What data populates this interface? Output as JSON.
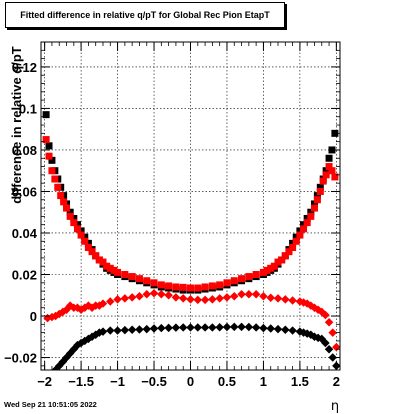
{
  "chart_data": {
    "type": "scatter",
    "title": "Fitted difference in relative q/pT for Global Rec Pion EtapT",
    "xlabel": "η",
    "ylabel": "difference in relative q/pT",
    "xlim": [
      -2.05,
      2.05
    ],
    "ylim": [
      -0.026,
      0.132
    ],
    "x_ticks": [
      -2,
      -1.5,
      -1,
      -0.5,
      0,
      0.5,
      1,
      1.5,
      2
    ],
    "x_tick_labels": [
      "−2",
      "−1.5",
      "−1",
      "−0.5",
      "0",
      "0.5",
      "1",
      "1.5",
      "2"
    ],
    "y_ticks": [
      -0.02,
      0,
      0.02,
      0.04,
      0.06,
      0.08,
      0.1,
      0.12
    ],
    "y_tick_labels": [
      "−0.02",
      "0",
      "0.02",
      "0.04",
      "0.06",
      "0.08",
      "0.1",
      "0.12"
    ],
    "grid": true,
    "series": [
      {
        "color": "#000000",
        "marker": "square",
        "x": [
          -1.98,
          -1.94,
          -1.9,
          -1.86,
          -1.82,
          -1.78,
          -1.74,
          -1.7,
          -1.65,
          -1.6,
          -1.55,
          -1.5,
          -1.45,
          -1.4,
          -1.35,
          -1.3,
          -1.25,
          -1.2,
          -1.15,
          -1.1,
          -1.05,
          -1.0,
          -0.9,
          -0.8,
          -0.7,
          -0.6,
          -0.5,
          -0.4,
          -0.3,
          -0.2,
          -0.1,
          0.0,
          0.1,
          0.2,
          0.3,
          0.4,
          0.5,
          0.6,
          0.7,
          0.8,
          0.9,
          1.0,
          1.05,
          1.1,
          1.15,
          1.2,
          1.25,
          1.3,
          1.35,
          1.4,
          1.45,
          1.5,
          1.55,
          1.6,
          1.65,
          1.7,
          1.74,
          1.78,
          1.82,
          1.86,
          1.9,
          1.94,
          1.98
        ],
        "y": [
          0.097,
          0.082,
          0.075,
          0.07,
          0.066,
          0.062,
          0.058,
          0.054,
          0.05,
          0.047,
          0.044,
          0.041,
          0.038,
          0.035,
          0.032,
          0.029,
          0.027,
          0.025,
          0.023,
          0.022,
          0.021,
          0.02,
          0.019,
          0.018,
          0.017,
          0.016,
          0.015,
          0.014,
          0.0135,
          0.013,
          0.0125,
          0.0125,
          0.0125,
          0.013,
          0.0135,
          0.014,
          0.015,
          0.016,
          0.017,
          0.018,
          0.019,
          0.02,
          0.021,
          0.022,
          0.023,
          0.025,
          0.027,
          0.029,
          0.032,
          0.035,
          0.038,
          0.041,
          0.044,
          0.047,
          0.05,
          0.054,
          0.058,
          0.062,
          0.066,
          0.07,
          0.076,
          0.08,
          0.088
        ]
      },
      {
        "color": "#000000",
        "marker": "diamond",
        "x": [
          -1.9,
          -1.85,
          -1.8,
          -1.75,
          -1.7,
          -1.65,
          -1.6,
          -1.55,
          -1.5,
          -1.45,
          -1.4,
          -1.35,
          -1.3,
          -1.25,
          -1.2,
          -1.1,
          -1.0,
          -0.9,
          -0.8,
          -0.7,
          -0.6,
          -0.5,
          -0.4,
          -0.3,
          -0.2,
          -0.1,
          0.0,
          0.1,
          0.2,
          0.3,
          0.4,
          0.5,
          0.6,
          0.7,
          0.8,
          0.9,
          1.0,
          1.1,
          1.2,
          1.3,
          1.4,
          1.5,
          1.55,
          1.6,
          1.65,
          1.7,
          1.75,
          1.8,
          1.85,
          1.9,
          1.95,
          2.0
        ],
        "y": [
          -0.028,
          -0.026,
          -0.024,
          -0.022,
          -0.02,
          -0.018,
          -0.016,
          -0.014,
          -0.013,
          -0.012,
          -0.011,
          -0.01,
          -0.009,
          -0.008,
          -0.0075,
          -0.007,
          -0.007,
          -0.0068,
          -0.0066,
          -0.0065,
          -0.0063,
          -0.006,
          -0.0058,
          -0.0057,
          -0.0056,
          -0.0055,
          -0.0055,
          -0.0055,
          -0.0055,
          -0.0055,
          -0.0054,
          -0.0053,
          -0.0052,
          -0.0052,
          -0.0053,
          -0.0055,
          -0.0058,
          -0.006,
          -0.0063,
          -0.0066,
          -0.007,
          -0.0075,
          -0.008,
          -0.0085,
          -0.009,
          -0.01,
          -0.0105,
          -0.011,
          -0.013,
          -0.016,
          -0.02,
          -0.024
        ]
      },
      {
        "color": "#ff0000",
        "marker": "square",
        "x": [
          -1.98,
          -1.94,
          -1.9,
          -1.86,
          -1.82,
          -1.78,
          -1.74,
          -1.7,
          -1.65,
          -1.6,
          -1.55,
          -1.5,
          -1.45,
          -1.4,
          -1.35,
          -1.3,
          -1.25,
          -1.2,
          -1.15,
          -1.1,
          -1.05,
          -1.0,
          -0.9,
          -0.8,
          -0.7,
          -0.6,
          -0.5,
          -0.4,
          -0.3,
          -0.2,
          -0.1,
          0.0,
          0.1,
          0.2,
          0.3,
          0.4,
          0.5,
          0.6,
          0.7,
          0.8,
          0.9,
          1.0,
          1.05,
          1.1,
          1.15,
          1.2,
          1.25,
          1.3,
          1.35,
          1.4,
          1.45,
          1.5,
          1.55,
          1.6,
          1.65,
          1.7,
          1.74,
          1.78,
          1.82,
          1.86,
          1.9,
          1.94,
          1.98
        ],
        "y": [
          0.085,
          0.077,
          0.07,
          0.066,
          0.062,
          0.058,
          0.055,
          0.052,
          0.048,
          0.045,
          0.042,
          0.039,
          0.036,
          0.033,
          0.031,
          0.029,
          0.027,
          0.026,
          0.024,
          0.023,
          0.022,
          0.021,
          0.02,
          0.019,
          0.018,
          0.017,
          0.016,
          0.015,
          0.0145,
          0.014,
          0.0138,
          0.0135,
          0.0135,
          0.014,
          0.0145,
          0.015,
          0.016,
          0.017,
          0.018,
          0.019,
          0.02,
          0.021,
          0.022,
          0.023,
          0.024,
          0.026,
          0.027,
          0.029,
          0.031,
          0.033,
          0.036,
          0.039,
          0.042,
          0.045,
          0.048,
          0.052,
          0.056,
          0.06,
          0.065,
          0.068,
          0.072,
          0.07,
          0.067
        ]
      },
      {
        "color": "#ff0000",
        "marker": "diamond",
        "x": [
          -1.96,
          -1.9,
          -1.85,
          -1.8,
          -1.75,
          -1.7,
          -1.65,
          -1.6,
          -1.55,
          -1.5,
          -1.45,
          -1.4,
          -1.35,
          -1.3,
          -1.25,
          -1.2,
          -1.1,
          -1.0,
          -0.9,
          -0.8,
          -0.7,
          -0.6,
          -0.5,
          -0.4,
          -0.3,
          -0.2,
          -0.1,
          0.0,
          0.1,
          0.2,
          0.3,
          0.4,
          0.5,
          0.6,
          0.7,
          0.8,
          0.9,
          1.0,
          1.1,
          1.2,
          1.3,
          1.4,
          1.5,
          1.55,
          1.6,
          1.65,
          1.7,
          1.75,
          1.8,
          1.85,
          1.9,
          1.95,
          2.0
        ],
        "y": [
          -0.001,
          -0.0005,
          0.0,
          0.001,
          0.002,
          0.003,
          0.005,
          0.004,
          0.004,
          0.003,
          0.004,
          0.005,
          0.004,
          0.005,
          0.005,
          0.006,
          0.007,
          0.008,
          0.0085,
          0.009,
          0.0095,
          0.0105,
          0.011,
          0.0105,
          0.01,
          0.009,
          0.0085,
          0.008,
          0.0078,
          0.0078,
          0.008,
          0.0085,
          0.009,
          0.0095,
          0.0105,
          0.0105,
          0.0105,
          0.0095,
          0.0088,
          0.0085,
          0.008,
          0.0075,
          0.007,
          0.0065,
          0.006,
          0.005,
          0.004,
          0.003,
          0.002,
          0.0005,
          -0.003,
          -0.008,
          -0.015
        ]
      }
    ]
  },
  "footer": {
    "timestamp": "Wed Sep 21 10:51:05 2022"
  }
}
